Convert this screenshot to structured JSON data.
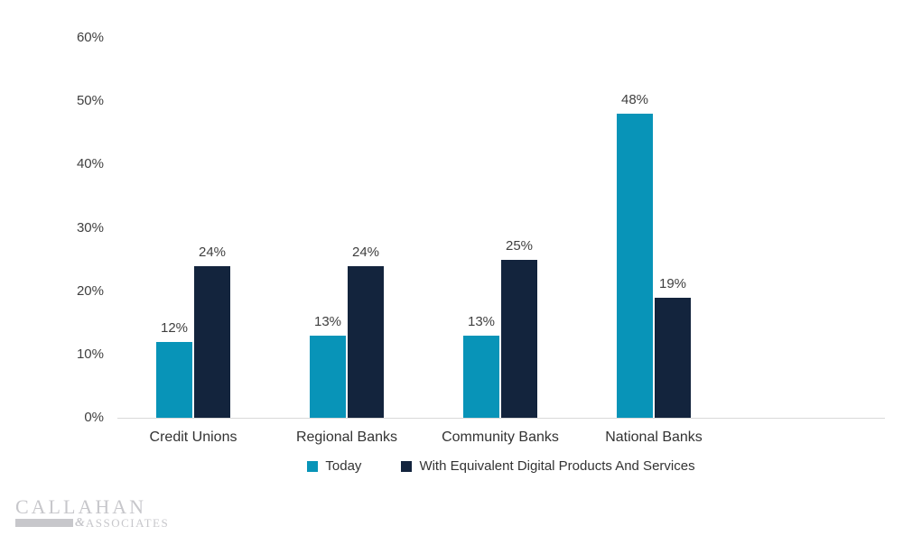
{
  "chart_data": {
    "type": "bar",
    "title": "",
    "categories": [
      "Credit Unions",
      "Regional Banks",
      "Community Banks",
      "National Banks"
    ],
    "series": [
      {
        "name": "Today",
        "color": "#0894B8",
        "values": [
          12,
          13,
          13,
          48
        ],
        "labels": [
          "12%",
          "13%",
          "13%",
          "48%"
        ]
      },
      {
        "name": "With Equivalent Digital Products And Services",
        "color": "#13243D",
        "values": [
          24,
          24,
          25,
          19
        ],
        "labels": [
          "24%",
          "24%",
          "25%",
          "19%"
        ]
      }
    ],
    "y_ticks": [
      {
        "value": 0,
        "label": "0%"
      },
      {
        "value": 10,
        "label": "10%"
      },
      {
        "value": 20,
        "label": "20%"
      },
      {
        "value": 30,
        "label": "30%"
      },
      {
        "value": 40,
        "label": "40%"
      },
      {
        "value": 50,
        "label": "50%"
      },
      {
        "value": 60,
        "label": "60%"
      }
    ],
    "ylim": [
      0,
      60
    ],
    "grid": false,
    "legend_position": "bottom"
  },
  "colors": {
    "background": "#FFFFFF",
    "axis_line": "#D9D9D9",
    "tick_text": "#3F3F3F",
    "category_text": "#333333",
    "data_label_text": "#3F3F3F",
    "legend_text": "#333333",
    "logo_gray": "#C7C7CB"
  },
  "logo": {
    "name": "CALLAHAN",
    "ampersand": "&",
    "associates": "ASSOCIATES"
  }
}
